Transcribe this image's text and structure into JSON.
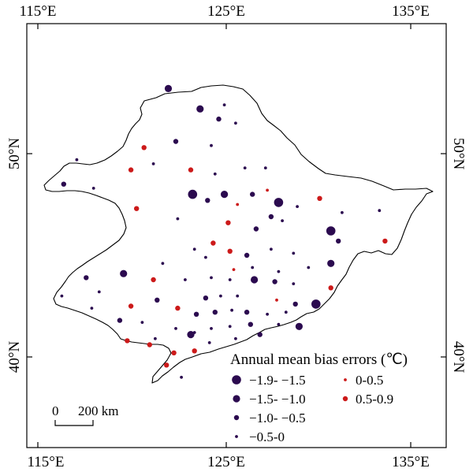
{
  "axes": {
    "top": [
      "115°E",
      "125°E",
      "135°E"
    ],
    "bottom": [
      "115°E",
      "125°E",
      "135°E"
    ],
    "left": [
      "50°N",
      "40°N"
    ],
    "right": [
      "50°N",
      "40°N"
    ]
  },
  "legend": {
    "title": "Annual mean bias errors (℃)",
    "negative": [
      {
        "label": "−1.9- −1.5",
        "color": "#2b0a4f"
      },
      {
        "label": "−1.5- −1.0",
        "color": "#2b0a4f"
      },
      {
        "label": "−1.0- −0.5",
        "color": "#2b0a4f"
      },
      {
        "label": "−0.5-0",
        "color": "#2b0a4f"
      }
    ],
    "positive": [
      {
        "label": "0-0.5",
        "color": "#cc1a1a"
      },
      {
        "label": "0.5-0.9",
        "color": "#cc1a1a"
      }
    ]
  },
  "scale_bar": {
    "zero": "0",
    "distance": "200 km"
  },
  "colors": {
    "negative": "#2b0a4f",
    "positive": "#cc1a1a",
    "frame": "#000000"
  },
  "stations": [
    {
      "lon": 121.9,
      "lat": 53.2,
      "bias": -1.2
    },
    {
      "lon": 123.6,
      "lat": 52.2,
      "bias": -1.2
    },
    {
      "lon": 124.6,
      "lat": 51.7,
      "bias": -0.7
    },
    {
      "lon": 124.9,
      "lat": 52.4,
      "bias": -0.3
    },
    {
      "lon": 125.5,
      "lat": 51.5,
      "bias": -0.3
    },
    {
      "lon": 120.6,
      "lat": 50.3,
      "bias": 0.6
    },
    {
      "lon": 122.3,
      "lat": 50.6,
      "bias": -0.7
    },
    {
      "lon": 124.2,
      "lat": 50.4,
      "bias": -0.3
    },
    {
      "lon": 116.3,
      "lat": 48.5,
      "bias": -0.7
    },
    {
      "lon": 117.9,
      "lat": 48.3,
      "bias": -0.3
    },
    {
      "lon": 117.0,
      "lat": 49.7,
      "bias": -0.3
    },
    {
      "lon": 119.9,
      "lat": 49.2,
      "bias": 0.6
    },
    {
      "lon": 121.1,
      "lat": 49.5,
      "bias": -0.3
    },
    {
      "lon": 123.1,
      "lat": 49.2,
      "bias": 0.6
    },
    {
      "lon": 124.4,
      "lat": 49.0,
      "bias": -0.3
    },
    {
      "lon": 126.0,
      "lat": 49.3,
      "bias": -0.3
    },
    {
      "lon": 127.1,
      "lat": 49.3,
      "bias": -0.3
    },
    {
      "lon": 124.9,
      "lat": 48.0,
      "bias": -1.2
    },
    {
      "lon": 124.0,
      "lat": 47.7,
      "bias": -0.7
    },
    {
      "lon": 123.2,
      "lat": 48.0,
      "bias": -1.6
    },
    {
      "lon": 125.6,
      "lat": 47.5,
      "bias": 0.3
    },
    {
      "lon": 126.4,
      "lat": 48.0,
      "bias": -0.7
    },
    {
      "lon": 127.2,
      "lat": 48.2,
      "bias": 0.3
    },
    {
      "lon": 127.8,
      "lat": 47.6,
      "bias": -1.6
    },
    {
      "lon": 128.8,
      "lat": 47.4,
      "bias": -0.3
    },
    {
      "lon": 130.0,
      "lat": 47.8,
      "bias": 0.6
    },
    {
      "lon": 131.2,
      "lat": 47.1,
      "bias": -0.3
    },
    {
      "lon": 133.2,
      "lat": 47.2,
      "bias": -0.3
    },
    {
      "lon": 120.2,
      "lat": 47.3,
      "bias": 0.6
    },
    {
      "lon": 122.4,
      "lat": 46.8,
      "bias": -0.3
    },
    {
      "lon": 125.1,
      "lat": 46.6,
      "bias": 0.6
    },
    {
      "lon": 126.6,
      "lat": 46.3,
      "bias": -0.7
    },
    {
      "lon": 127.4,
      "lat": 46.9,
      "bias": -0.7
    },
    {
      "lon": 128.0,
      "lat": 46.7,
      "bias": -0.3
    },
    {
      "lon": 130.6,
      "lat": 46.2,
      "bias": -1.6
    },
    {
      "lon": 131.0,
      "lat": 45.7,
      "bias": -0.7
    },
    {
      "lon": 133.5,
      "lat": 45.7,
      "bias": 0.6
    },
    {
      "lon": 123.3,
      "lat": 45.3,
      "bias": -0.3
    },
    {
      "lon": 124.3,
      "lat": 45.6,
      "bias": 0.6
    },
    {
      "lon": 125.2,
      "lat": 45.2,
      "bias": 0.6
    },
    {
      "lon": 126.1,
      "lat": 45.0,
      "bias": -0.7
    },
    {
      "lon": 127.4,
      "lat": 45.3,
      "bias": -0.3
    },
    {
      "lon": 128.6,
      "lat": 45.1,
      "bias": -0.3
    },
    {
      "lon": 130.6,
      "lat": 44.6,
      "bias": -1.2
    },
    {
      "lon": 121.6,
      "lat": 44.6,
      "bias": -0.3
    },
    {
      "lon": 123.9,
      "lat": 44.9,
      "bias": -0.3
    },
    {
      "lon": 125.4,
      "lat": 44.3,
      "bias": 0.3
    },
    {
      "lon": 126.4,
      "lat": 44.4,
      "bias": -0.3
    },
    {
      "lon": 127.8,
      "lat": 44.2,
      "bias": -0.3
    },
    {
      "lon": 129.4,
      "lat": 44.4,
      "bias": -0.3
    },
    {
      "lon": 117.5,
      "lat": 43.9,
      "bias": -0.7
    },
    {
      "lon": 119.5,
      "lat": 44.1,
      "bias": -1.2
    },
    {
      "lon": 121.1,
      "lat": 43.8,
      "bias": 0.6
    },
    {
      "lon": 122.8,
      "lat": 43.8,
      "bias": -0.3
    },
    {
      "lon": 124.2,
      "lat": 43.9,
      "bias": -0.3
    },
    {
      "lon": 125.2,
      "lat": 43.8,
      "bias": -0.3
    },
    {
      "lon": 126.5,
      "lat": 43.8,
      "bias": -1.2
    },
    {
      "lon": 127.6,
      "lat": 43.7,
      "bias": -0.7
    },
    {
      "lon": 128.6,
      "lat": 43.6,
      "bias": -0.3
    },
    {
      "lon": 130.6,
      "lat": 43.4,
      "bias": 0.6
    },
    {
      "lon": 116.2,
      "lat": 43.0,
      "bias": -0.3
    },
    {
      "lon": 118.2,
      "lat": 43.2,
      "bias": -0.3
    },
    {
      "lon": 121.3,
      "lat": 42.8,
      "bias": -0.7
    },
    {
      "lon": 123.9,
      "lat": 42.9,
      "bias": -0.7
    },
    {
      "lon": 124.7,
      "lat": 43.0,
      "bias": -0.3
    },
    {
      "lon": 125.6,
      "lat": 43.0,
      "bias": -0.3
    },
    {
      "lon": 127.7,
      "lat": 42.8,
      "bias": 0.3
    },
    {
      "lon": 128.7,
      "lat": 42.6,
      "bias": -0.7
    },
    {
      "lon": 129.8,
      "lat": 42.6,
      "bias": -1.6
    },
    {
      "lon": 117.8,
      "lat": 42.4,
      "bias": -0.3
    },
    {
      "lon": 119.9,
      "lat": 42.5,
      "bias": 0.6
    },
    {
      "lon": 122.4,
      "lat": 42.4,
      "bias": 0.6
    },
    {
      "lon": 123.4,
      "lat": 42.1,
      "bias": -0.7
    },
    {
      "lon": 124.4,
      "lat": 42.2,
      "bias": -0.7
    },
    {
      "lon": 125.3,
      "lat": 42.3,
      "bias": -0.3
    },
    {
      "lon": 126.1,
      "lat": 42.2,
      "bias": -0.7
    },
    {
      "lon": 127.2,
      "lat": 42.1,
      "bias": -0.3
    },
    {
      "lon": 128.2,
      "lat": 42.2,
      "bias": -0.3
    },
    {
      "lon": 119.3,
      "lat": 41.8,
      "bias": -0.7
    },
    {
      "lon": 120.5,
      "lat": 41.7,
      "bias": -0.3
    },
    {
      "lon": 122.3,
      "lat": 41.4,
      "bias": -0.3
    },
    {
      "lon": 123.3,
      "lat": 41.2,
      "bias": -0.3
    },
    {
      "lon": 124.2,
      "lat": 41.4,
      "bias": -0.3
    },
    {
      "lon": 125.2,
      "lat": 41.5,
      "bias": -0.3
    },
    {
      "lon": 126.3,
      "lat": 41.6,
      "bias": -0.7
    },
    {
      "lon": 127.8,
      "lat": 41.6,
      "bias": -0.3
    },
    {
      "lon": 128.9,
      "lat": 41.5,
      "bias": -1.2
    },
    {
      "lon": 121.2,
      "lat": 40.9,
      "bias": -0.3
    },
    {
      "lon": 123.1,
      "lat": 41.1,
      "bias": -1.2
    },
    {
      "lon": 124.1,
      "lat": 40.7,
      "bias": -0.3
    },
    {
      "lon": 125.5,
      "lat": 40.9,
      "bias": -0.3
    },
    {
      "lon": 126.8,
      "lat": 41.1,
      "bias": -0.7
    },
    {
      "lon": 119.7,
      "lat": 40.8,
      "bias": 0.6
    },
    {
      "lon": 120.9,
      "lat": 40.6,
      "bias": 0.6
    },
    {
      "lon": 122.2,
      "lat": 40.2,
      "bias": 0.6
    },
    {
      "lon": 123.3,
      "lat": 40.3,
      "bias": 0.6
    },
    {
      "lon": 121.8,
      "lat": 39.6,
      "bias": 0.6
    },
    {
      "lon": 122.6,
      "lat": 39.0,
      "bias": -0.3
    }
  ]
}
